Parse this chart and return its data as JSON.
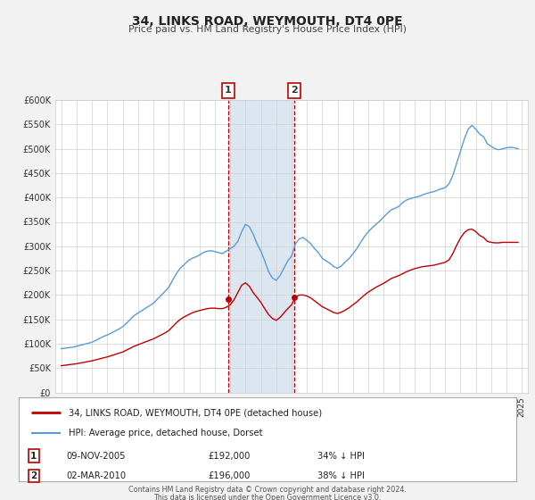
{
  "title": "34, LINKS ROAD, WEYMOUTH, DT4 0PE",
  "subtitle": "Price paid vs. HM Land Registry's House Price Index (HPI)",
  "hpi_label": "HPI: Average price, detached house, Dorset",
  "property_label": "34, LINKS ROAD, WEYMOUTH, DT4 0PE (detached house)",
  "footer1": "Contains HM Land Registry data © Crown copyright and database right 2024.",
  "footer2": "This data is licensed under the Open Government Licence v3.0.",
  "ylim": [
    0,
    600000
  ],
  "yticks": [
    0,
    50000,
    100000,
    150000,
    200000,
    250000,
    300000,
    350000,
    400000,
    450000,
    500000,
    550000,
    600000
  ],
  "xlim_start": 1994.6,
  "xlim_end": 2025.4,
  "xticks": [
    1995,
    1996,
    1997,
    1998,
    1999,
    2000,
    2001,
    2002,
    2003,
    2004,
    2005,
    2006,
    2007,
    2008,
    2009,
    2010,
    2011,
    2012,
    2013,
    2014,
    2015,
    2016,
    2017,
    2018,
    2019,
    2020,
    2021,
    2022,
    2023,
    2024,
    2025
  ],
  "transaction1": {
    "label": "1",
    "date": "09-NOV-2005",
    "price": 192000,
    "pct": "34%",
    "direction": "↓",
    "x": 2005.86
  },
  "transaction2": {
    "label": "2",
    "date": "02-MAR-2010",
    "price": 196000,
    "pct": "38%",
    "direction": "↓",
    "x": 2010.17
  },
  "hpi_color": "#5b9bd5",
  "property_color": "#c00000",
  "grid_color": "#d0d0d0",
  "shade_color": "#dce6f1",
  "background_color": "#f2f2f2",
  "plot_bg_color": "#ffffff",
  "marker1_y": 192000,
  "marker2_y": 196000,
  "hpi_data_x": [
    1995.0,
    1995.25,
    1995.5,
    1995.75,
    1996.0,
    1996.25,
    1996.5,
    1996.75,
    1997.0,
    1997.25,
    1997.5,
    1997.75,
    1998.0,
    1998.25,
    1998.5,
    1998.75,
    1999.0,
    1999.25,
    1999.5,
    1999.75,
    2000.0,
    2000.25,
    2000.5,
    2000.75,
    2001.0,
    2001.25,
    2001.5,
    2001.75,
    2002.0,
    2002.25,
    2002.5,
    2002.75,
    2003.0,
    2003.25,
    2003.5,
    2003.75,
    2004.0,
    2004.25,
    2004.5,
    2004.75,
    2005.0,
    2005.25,
    2005.5,
    2005.75,
    2006.0,
    2006.25,
    2006.5,
    2006.75,
    2007.0,
    2007.25,
    2007.5,
    2007.75,
    2008.0,
    2008.25,
    2008.5,
    2008.75,
    2009.0,
    2009.25,
    2009.5,
    2009.75,
    2010.0,
    2010.25,
    2010.5,
    2010.75,
    2011.0,
    2011.25,
    2011.5,
    2011.75,
    2012.0,
    2012.25,
    2012.5,
    2012.75,
    2013.0,
    2013.25,
    2013.5,
    2013.75,
    2014.0,
    2014.25,
    2014.5,
    2014.75,
    2015.0,
    2015.25,
    2015.5,
    2015.75,
    2016.0,
    2016.25,
    2016.5,
    2016.75,
    2017.0,
    2017.25,
    2017.5,
    2017.75,
    2018.0,
    2018.25,
    2018.5,
    2018.75,
    2019.0,
    2019.25,
    2019.5,
    2019.75,
    2020.0,
    2020.25,
    2020.5,
    2020.75,
    2021.0,
    2021.25,
    2021.5,
    2021.75,
    2022.0,
    2022.25,
    2022.5,
    2022.75,
    2023.0,
    2023.25,
    2023.5,
    2023.75,
    2024.0,
    2024.25,
    2024.5,
    2024.75
  ],
  "hpi_data_y": [
    90000,
    91000,
    92000,
    93000,
    95000,
    97000,
    99000,
    101000,
    103000,
    107000,
    111000,
    115000,
    118000,
    122000,
    126000,
    130000,
    135000,
    142000,
    150000,
    158000,
    163000,
    168000,
    173000,
    178000,
    183000,
    191000,
    199000,
    207000,
    216000,
    230000,
    244000,
    255000,
    262000,
    270000,
    275000,
    278000,
    282000,
    287000,
    290000,
    291000,
    289000,
    287000,
    285000,
    290000,
    295000,
    300000,
    310000,
    330000,
    345000,
    340000,
    325000,
    305000,
    290000,
    270000,
    248000,
    235000,
    230000,
    240000,
    255000,
    270000,
    280000,
    305000,
    315000,
    318000,
    312000,
    305000,
    295000,
    287000,
    275000,
    270000,
    265000,
    258000,
    255000,
    260000,
    268000,
    275000,
    285000,
    295000,
    308000,
    320000,
    330000,
    338000,
    345000,
    352000,
    360000,
    368000,
    375000,
    378000,
    382000,
    390000,
    395000,
    398000,
    400000,
    402000,
    405000,
    408000,
    410000,
    412000,
    415000,
    418000,
    420000,
    428000,
    445000,
    470000,
    495000,
    520000,
    540000,
    548000,
    540000,
    530000,
    525000,
    510000,
    505000,
    500000,
    498000,
    500000,
    502000,
    503000,
    502000,
    500000
  ],
  "property_data_x": [
    1995.0,
    1995.25,
    1995.5,
    1995.75,
    1996.0,
    1996.25,
    1996.5,
    1996.75,
    1997.0,
    1997.25,
    1997.5,
    1997.75,
    1998.0,
    1998.25,
    1998.5,
    1998.75,
    1999.0,
    1999.25,
    1999.5,
    1999.75,
    2000.0,
    2000.25,
    2000.5,
    2000.75,
    2001.0,
    2001.25,
    2001.5,
    2001.75,
    2002.0,
    2002.25,
    2002.5,
    2002.75,
    2003.0,
    2003.25,
    2003.5,
    2003.75,
    2004.0,
    2004.25,
    2004.5,
    2004.75,
    2005.0,
    2005.25,
    2005.5,
    2005.75,
    2006.0,
    2006.25,
    2006.5,
    2006.75,
    2007.0,
    2007.25,
    2007.5,
    2007.75,
    2008.0,
    2008.25,
    2008.5,
    2008.75,
    2009.0,
    2009.25,
    2009.5,
    2009.75,
    2010.0,
    2010.25,
    2010.5,
    2010.75,
    2011.0,
    2011.25,
    2011.5,
    2011.75,
    2012.0,
    2012.25,
    2012.5,
    2012.75,
    2013.0,
    2013.25,
    2013.5,
    2013.75,
    2014.0,
    2014.25,
    2014.5,
    2014.75,
    2015.0,
    2015.25,
    2015.5,
    2015.75,
    2016.0,
    2016.25,
    2016.5,
    2016.75,
    2017.0,
    2017.25,
    2017.5,
    2017.75,
    2018.0,
    2018.25,
    2018.5,
    2018.75,
    2019.0,
    2019.25,
    2019.5,
    2019.75,
    2020.0,
    2020.25,
    2020.5,
    2020.75,
    2021.0,
    2021.25,
    2021.5,
    2021.75,
    2022.0,
    2022.25,
    2022.5,
    2022.75,
    2023.0,
    2023.25,
    2023.5,
    2023.75,
    2024.0,
    2024.25,
    2024.5,
    2024.75
  ],
  "property_data_y": [
    55000,
    56000,
    57000,
    58000,
    59000,
    60500,
    62000,
    63500,
    65000,
    67000,
    69000,
    71000,
    73000,
    75500,
    78000,
    80500,
    83000,
    87000,
    91000,
    95000,
    98000,
    101000,
    104000,
    107000,
    110000,
    114000,
    118000,
    122000,
    127000,
    135000,
    143000,
    150000,
    155000,
    159000,
    163000,
    166000,
    168000,
    170000,
    172000,
    173000,
    173000,
    172000,
    172000,
    175000,
    180000,
    190000,
    205000,
    220000,
    225000,
    218000,
    205000,
    195000,
    185000,
    172000,
    160000,
    152000,
    148000,
    154000,
    163000,
    172000,
    180000,
    195000,
    200000,
    200000,
    198000,
    194000,
    188000,
    182000,
    176000,
    172000,
    168000,
    164000,
    162000,
    165000,
    169000,
    174000,
    180000,
    186000,
    193000,
    200000,
    206000,
    211000,
    216000,
    220000,
    224000,
    229000,
    234000,
    237000,
    240000,
    244000,
    248000,
    251000,
    254000,
    256000,
    258000,
    259000,
    260000,
    261000,
    263000,
    265000,
    267000,
    272000,
    285000,
    302000,
    317000,
    328000,
    334000,
    335000,
    330000,
    322000,
    318000,
    310000,
    308000,
    307000,
    307000,
    308000,
    308000,
    308000,
    308000,
    308000
  ]
}
